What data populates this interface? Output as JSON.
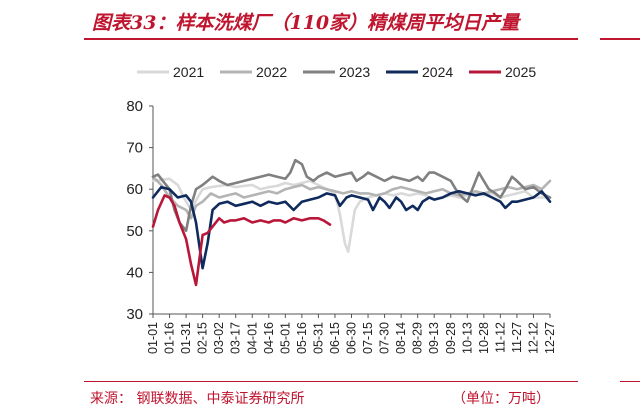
{
  "header": {
    "title": "图表33：样本洗煤厂（110家）精煤周平均日产量"
  },
  "footer": {
    "source": "来源：  钢联数据、中泰证券研究所",
    "unit": "（单位：万吨）"
  },
  "colors": {
    "accent": "#c0152f",
    "s2021": "#d9d9d9",
    "s2022": "#b4b4b4",
    "s2023": "#808080",
    "s2024": "#0f2a5c",
    "s2025": "#b8173a"
  },
  "chart_data": {
    "type": "line",
    "x": [
      "01-01",
      "01-16",
      "01-31",
      "02-15",
      "03-02",
      "03-17",
      "04-01",
      "04-16",
      "05-01",
      "05-16",
      "05-31",
      "06-15",
      "06-30",
      "07-15",
      "07-30",
      "08-14",
      "08-29",
      "09-13",
      "09-28",
      "10-13",
      "10-28",
      "11-12",
      "11-27",
      "12-12",
      "12-27"
    ],
    "ylim": [
      30,
      80
    ],
    "yticks": [
      30,
      40,
      50,
      60,
      70,
      80
    ],
    "legend_position": "top",
    "grid": false,
    "series": [
      {
        "name": "2021",
        "color": "#d9d9d9",
        "points": [
          [
            0,
            62
          ],
          [
            1,
            62.5
          ],
          [
            1.5,
            61
          ],
          [
            2,
            57
          ],
          [
            2.3,
            55
          ],
          [
            2.7,
            58
          ],
          [
            3,
            60
          ],
          [
            3.5,
            60.5
          ],
          [
            4,
            60.8
          ],
          [
            4.5,
            61
          ],
          [
            5,
            60.5
          ],
          [
            5.5,
            60.8
          ],
          [
            6,
            61
          ],
          [
            6.5,
            60
          ],
          [
            7,
            60.5
          ],
          [
            7.5,
            60.8
          ],
          [
            8,
            61.5
          ],
          [
            8.5,
            61
          ],
          [
            9,
            61.5
          ],
          [
            9.5,
            62
          ],
          [
            10,
            61
          ],
          [
            10.5,
            60
          ],
          [
            11,
            59
          ],
          [
            11.3,
            54
          ],
          [
            11.6,
            47
          ],
          [
            11.8,
            45
          ],
          [
            12,
            50
          ],
          [
            12.2,
            55
          ],
          [
            12.5,
            57
          ],
          [
            13,
            58
          ],
          [
            13.5,
            58.5
          ],
          [
            14,
            59
          ],
          [
            14.5,
            58.5
          ],
          [
            15,
            59
          ],
          [
            15.5,
            58.5
          ],
          [
            16,
            59
          ],
          [
            16.5,
            58.5
          ],
          [
            17,
            57.5
          ],
          [
            17.5,
            58
          ],
          [
            18,
            58.5
          ],
          [
            18.5,
            58
          ],
          [
            19,
            58.5
          ],
          [
            19.5,
            59
          ],
          [
            20,
            58.5
          ],
          [
            20.5,
            59
          ],
          [
            21,
            58
          ],
          [
            21.5,
            58.5
          ],
          [
            22,
            59
          ],
          [
            22.5,
            59.5
          ],
          [
            23,
            58
          ],
          [
            23.5,
            58
          ],
          [
            24,
            58
          ]
        ]
      },
      {
        "name": "2022",
        "color": "#b4b4b4",
        "points": [
          [
            0,
            63
          ],
          [
            0.5,
            61
          ],
          [
            1,
            58
          ],
          [
            1.5,
            56
          ],
          [
            2,
            55
          ],
          [
            2.3,
            53
          ],
          [
            2.6,
            56
          ],
          [
            3,
            57
          ],
          [
            3.5,
            59
          ],
          [
            4,
            58
          ],
          [
            4.5,
            58.5
          ],
          [
            5,
            59
          ],
          [
            5.5,
            58
          ],
          [
            6,
            58.5
          ],
          [
            6.5,
            59
          ],
          [
            7,
            59.5
          ],
          [
            7.5,
            59
          ],
          [
            8,
            60
          ],
          [
            8.5,
            60.5
          ],
          [
            9,
            61
          ],
          [
            9.5,
            60
          ],
          [
            10,
            60.5
          ],
          [
            10.5,
            60
          ],
          [
            11,
            59.5
          ],
          [
            11.5,
            59
          ],
          [
            12,
            59.5
          ],
          [
            12.5,
            59
          ],
          [
            13,
            59
          ],
          [
            13.5,
            58.5
          ],
          [
            14,
            59
          ],
          [
            14.5,
            60
          ],
          [
            15,
            60.5
          ],
          [
            15.5,
            60
          ],
          [
            16,
            59.5
          ],
          [
            16.5,
            59
          ],
          [
            17,
            59.5
          ],
          [
            17.5,
            60
          ],
          [
            18,
            59
          ],
          [
            18.5,
            58.5
          ],
          [
            19,
            59
          ],
          [
            19.5,
            59.5
          ],
          [
            20,
            59
          ],
          [
            20.5,
            59.5
          ],
          [
            21,
            60
          ],
          [
            21.5,
            60.5
          ],
          [
            22,
            60
          ],
          [
            22.5,
            60.5
          ],
          [
            23,
            61
          ],
          [
            23.5,
            60
          ],
          [
            24,
            62
          ]
        ]
      },
      {
        "name": "2023",
        "color": "#808080",
        "points": [
          [
            0,
            63
          ],
          [
            0.3,
            63.5
          ],
          [
            0.6,
            62
          ],
          [
            1,
            60
          ],
          [
            1.3,
            55
          ],
          [
            1.6,
            52
          ],
          [
            2,
            50
          ],
          [
            2.3,
            56
          ],
          [
            2.6,
            60
          ],
          [
            3,
            61
          ],
          [
            3.3,
            62
          ],
          [
            3.6,
            63
          ],
          [
            4,
            62
          ],
          [
            4.5,
            61
          ],
          [
            5,
            61.5
          ],
          [
            5.5,
            62
          ],
          [
            6,
            62.5
          ],
          [
            6.5,
            63
          ],
          [
            7,
            63.5
          ],
          [
            7.5,
            63
          ],
          [
            8,
            62.5
          ],
          [
            8.3,
            64
          ],
          [
            8.6,
            67
          ],
          [
            9,
            66
          ],
          [
            9.3,
            63
          ],
          [
            9.7,
            62
          ],
          [
            10,
            63
          ],
          [
            10.5,
            64
          ],
          [
            11,
            63
          ],
          [
            11.5,
            63.5
          ],
          [
            12,
            64
          ],
          [
            12.3,
            62
          ],
          [
            12.7,
            63
          ],
          [
            13,
            64
          ],
          [
            13.5,
            63
          ],
          [
            14,
            62
          ],
          [
            14.5,
            63
          ],
          [
            15,
            62.5
          ],
          [
            15.5,
            62
          ],
          [
            16,
            63
          ],
          [
            16.3,
            62
          ],
          [
            16.7,
            64
          ],
          [
            17,
            64
          ],
          [
            17.5,
            63
          ],
          [
            18,
            62
          ],
          [
            18.3,
            60
          ],
          [
            18.7,
            58
          ],
          [
            19,
            57
          ],
          [
            19.3,
            60
          ],
          [
            19.7,
            64
          ],
          [
            20,
            62
          ],
          [
            20.3,
            60
          ],
          [
            20.7,
            59
          ],
          [
            21,
            58
          ],
          [
            21.3,
            60
          ],
          [
            21.7,
            63
          ],
          [
            22,
            62
          ],
          [
            22.5,
            60
          ],
          [
            23,
            60.5
          ],
          [
            23.5,
            59
          ],
          [
            24,
            58
          ]
        ]
      },
      {
        "name": "2024",
        "color": "#0f2a5c",
        "points": [
          [
            0,
            58
          ],
          [
            0.5,
            60.5
          ],
          [
            1,
            60
          ],
          [
            1.5,
            58
          ],
          [
            2,
            58.5
          ],
          [
            2.3,
            57
          ],
          [
            2.6,
            52
          ],
          [
            3,
            41
          ],
          [
            3.3,
            47
          ],
          [
            3.6,
            55
          ],
          [
            4,
            56.5
          ],
          [
            4.5,
            57
          ],
          [
            5,
            56
          ],
          [
            5.5,
            56.5
          ],
          [
            6,
            57
          ],
          [
            6.5,
            56
          ],
          [
            7,
            57
          ],
          [
            7.5,
            56.5
          ],
          [
            8,
            57
          ],
          [
            8.5,
            55
          ],
          [
            9,
            57
          ],
          [
            9.5,
            57.5
          ],
          [
            10,
            58
          ],
          [
            10.5,
            59
          ],
          [
            11,
            58.5
          ],
          [
            11.3,
            56
          ],
          [
            11.7,
            58
          ],
          [
            12,
            58.5
          ],
          [
            12.5,
            58
          ],
          [
            13,
            57.5
          ],
          [
            13.3,
            55
          ],
          [
            13.7,
            58
          ],
          [
            14,
            57
          ],
          [
            14.3,
            55.5
          ],
          [
            14.7,
            58
          ],
          [
            15,
            57
          ],
          [
            15.3,
            55
          ],
          [
            15.7,
            56
          ],
          [
            16,
            55
          ],
          [
            16.3,
            57
          ],
          [
            16.7,
            58
          ],
          [
            17,
            57.5
          ],
          [
            17.5,
            58
          ],
          [
            18,
            59
          ],
          [
            18.5,
            59.5
          ],
          [
            19,
            59
          ],
          [
            19.5,
            58.5
          ],
          [
            20,
            59
          ],
          [
            20.5,
            58
          ],
          [
            21,
            57
          ],
          [
            21.3,
            55.5
          ],
          [
            21.7,
            57
          ],
          [
            22,
            57
          ],
          [
            22.5,
            57.5
          ],
          [
            23,
            58
          ],
          [
            23.5,
            59.5
          ],
          [
            24,
            57
          ]
        ]
      },
      {
        "name": "2025",
        "color": "#b8173a",
        "points": [
          [
            0,
            51
          ],
          [
            0.3,
            55
          ],
          [
            0.7,
            58.5
          ],
          [
            1,
            58
          ],
          [
            1.3,
            56
          ],
          [
            1.6,
            52
          ],
          [
            2,
            48
          ],
          [
            2.3,
            42
          ],
          [
            2.6,
            37
          ],
          [
            3,
            49
          ],
          [
            3.3,
            49.5
          ],
          [
            3.6,
            51
          ],
          [
            4,
            53
          ],
          [
            4.3,
            52
          ],
          [
            4.7,
            52.5
          ],
          [
            5,
            52.5
          ],
          [
            5.5,
            53
          ],
          [
            6,
            52
          ],
          [
            6.5,
            52.5
          ],
          [
            7,
            52
          ],
          [
            7.3,
            52.5
          ],
          [
            7.7,
            52.5
          ],
          [
            8,
            52
          ],
          [
            8.5,
            53
          ],
          [
            9,
            52.5
          ],
          [
            9.5,
            53
          ],
          [
            10,
            53
          ],
          [
            10.3,
            52.5
          ],
          [
            10.7,
            51.5
          ]
        ]
      }
    ]
  }
}
